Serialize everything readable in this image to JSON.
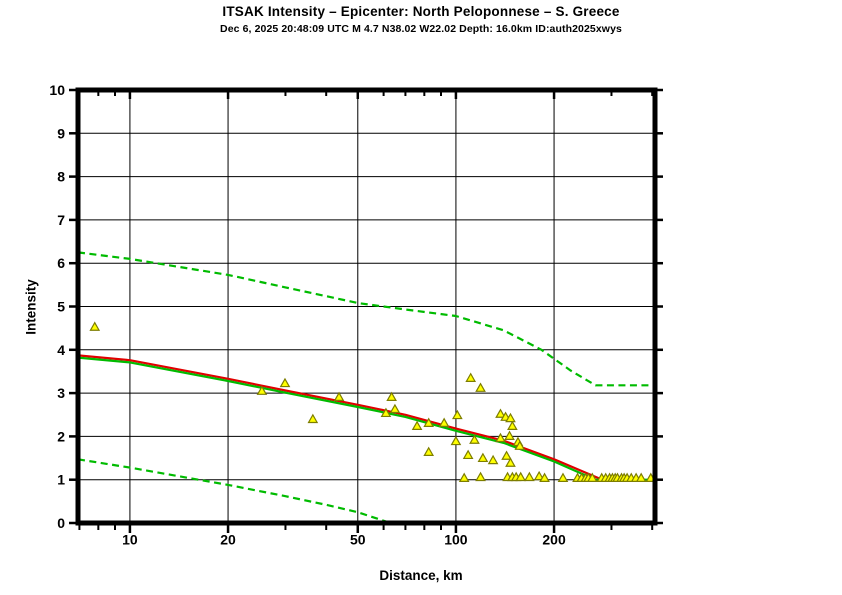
{
  "header": {
    "title": "ITSAK Intensity –  Epicenter: North Peloponnese – S. Greece",
    "subtitle": "Dec 6, 2025 20:48:09 UTC   M 4.7   N38.02 W22.02   Depth: 16.0km   ID:auth2025xwys"
  },
  "chart_data": {
    "type": "scatter",
    "title": "ITSAK Intensity –  Epicenter: North Peloponnese – S. Greece",
    "subtitle": "Dec 6, 2025 20:48:09 UTC   M 4.7   N38.02 W22.02   Depth: 16.0km   ID:auth2025xwys",
    "xlabel": "Distance, km",
    "ylabel": "Intensity",
    "x_scale": "log",
    "xlim": [
      6.93,
      408
    ],
    "ylim": [
      0,
      10
    ],
    "grid": true,
    "x_ticks_major": [
      10,
      20,
      50,
      100,
      200
    ],
    "x_ticks_minor": [
      7,
      8,
      9,
      30,
      40,
      60,
      70,
      80,
      90,
      300,
      400
    ],
    "y_ticks": [
      0,
      1,
      2,
      3,
      4,
      5,
      6,
      7,
      8,
      9,
      10
    ],
    "grid_x": [
      10,
      20,
      50,
      100,
      200
    ],
    "grid_y": [
      1,
      2,
      3,
      4,
      5,
      6,
      7,
      8,
      9
    ],
    "series": [
      {
        "name": "upper-bound-dashed",
        "type": "line",
        "style": "dashed",
        "color": "#00bb00",
        "points": [
          [
            6.93,
            6.25
          ],
          [
            10,
            6.1
          ],
          [
            20,
            5.73
          ],
          [
            30,
            5.44
          ],
          [
            50,
            5.08
          ],
          [
            70,
            4.93
          ],
          [
            100,
            4.78
          ],
          [
            140,
            4.45
          ],
          [
            183,
            4.0
          ],
          [
            225,
            3.52
          ],
          [
            268,
            3.18
          ],
          [
            408,
            3.18
          ]
        ]
      },
      {
        "name": "median-red",
        "type": "line",
        "style": "solid",
        "color": "#e10000",
        "points": [
          [
            6.93,
            3.87
          ],
          [
            10,
            3.76
          ],
          [
            20,
            3.33
          ],
          [
            30,
            3.06
          ],
          [
            50,
            2.73
          ],
          [
            70,
            2.5
          ],
          [
            100,
            2.18
          ],
          [
            140,
            1.9
          ],
          [
            200,
            1.47
          ],
          [
            275,
            1.03
          ]
        ]
      },
      {
        "name": "median-green",
        "type": "line",
        "style": "solid",
        "color": "#00bb00",
        "points": [
          [
            6.93,
            3.82
          ],
          [
            10,
            3.71
          ],
          [
            20,
            3.28
          ],
          [
            30,
            3.01
          ],
          [
            50,
            2.68
          ],
          [
            70,
            2.45
          ],
          [
            100,
            2.13
          ],
          [
            140,
            1.85
          ],
          [
            200,
            1.42
          ],
          [
            268,
            1.0
          ],
          [
            408,
            1.0
          ]
        ]
      },
      {
        "name": "lower-bound-dashed",
        "type": "line",
        "style": "dashed",
        "color": "#00bb00",
        "points": [
          [
            6.93,
            1.47
          ],
          [
            10,
            1.28
          ],
          [
            20,
            0.88
          ],
          [
            30,
            0.62
          ],
          [
            40,
            0.42
          ],
          [
            50,
            0.25
          ],
          [
            63,
            0.0
          ]
        ]
      },
      {
        "name": "observed-intensities",
        "type": "scatter",
        "marker": "triangle-up",
        "fill": "#ffff00",
        "stroke": "#7d7d00",
        "points": [
          [
            7.8,
            4.53
          ],
          [
            25.4,
            3.05
          ],
          [
            29.9,
            3.23
          ],
          [
            36.4,
            2.4
          ],
          [
            43.8,
            2.91
          ],
          [
            61,
            2.54
          ],
          [
            63.5,
            2.91
          ],
          [
            65,
            2.63
          ],
          [
            76,
            2.24
          ],
          [
            82.5,
            2.31
          ],
          [
            92,
            2.31
          ],
          [
            82.5,
            1.64
          ],
          [
            101,
            2.49
          ],
          [
            100,
            1.89
          ],
          [
            106,
            1.04
          ],
          [
            109,
            1.57
          ],
          [
            111,
            3.35
          ],
          [
            119,
            3.12
          ],
          [
            114,
            1.92
          ],
          [
            119,
            1.06
          ],
          [
            121,
            1.5
          ],
          [
            130,
            1.45
          ],
          [
            137,
            2.52
          ],
          [
            142,
            2.45
          ],
          [
            147,
            2.42
          ],
          [
            149,
            2.24
          ],
          [
            146,
            2.01
          ],
          [
            137,
            1.96
          ],
          [
            143,
            1.55
          ],
          [
            147,
            1.39
          ],
          [
            155,
            1.87
          ],
          [
            157,
            1.78
          ],
          [
            144,
            1.06
          ],
          [
            149,
            1.06
          ],
          [
            153,
            1.06
          ],
          [
            158,
            1.06
          ],
          [
            168,
            1.06
          ],
          [
            180,
            1.08
          ],
          [
            187,
            1.04
          ],
          [
            213,
            1.04
          ],
          [
            236,
            1.04
          ],
          [
            243,
            1.04
          ],
          [
            250,
            1.04
          ],
          [
            255,
            1.04
          ],
          [
            262,
            1.04
          ],
          [
            280,
            1.04
          ],
          [
            288,
            1.04
          ],
          [
            296,
            1.04
          ],
          [
            302,
            1.04
          ],
          [
            308,
            1.04
          ],
          [
            313,
            1.04
          ],
          [
            322,
            1.04
          ],
          [
            328,
            1.04
          ],
          [
            335,
            1.04
          ],
          [
            345,
            1.04
          ],
          [
            357,
            1.04
          ],
          [
            370,
            1.04
          ],
          [
            396,
            1.04
          ]
        ]
      }
    ]
  },
  "colors": {
    "frame": "#000000",
    "grid": "#000000",
    "bound_green": "#00bb00",
    "median_red": "#e10000",
    "marker_fill": "#ffff00",
    "marker_stroke": "#7d7d00"
  }
}
